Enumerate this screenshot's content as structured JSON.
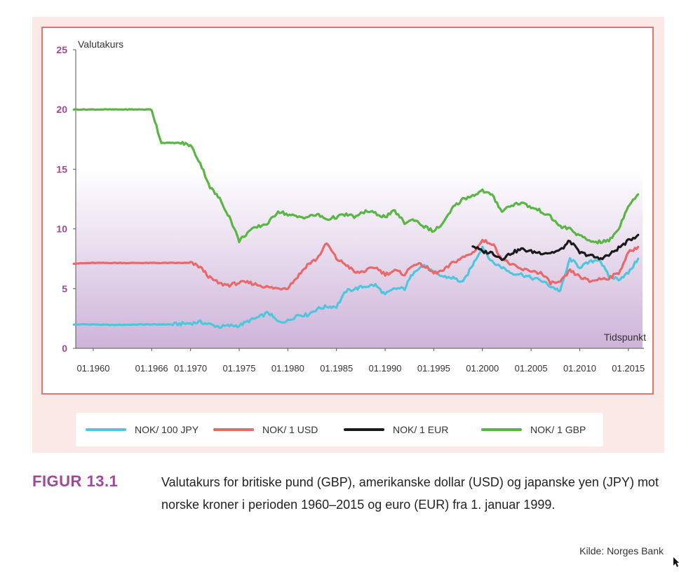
{
  "chart_data": {
    "type": "line",
    "ylabel": "Valutakurs",
    "xlabel": "Tidspunkt",
    "ylim": [
      0,
      25
    ],
    "yticks": [
      0,
      5,
      10,
      15,
      20,
      25
    ],
    "xticks": [
      "01.1960",
      "01.1966",
      "01.1970",
      "01.1975",
      "01.1980",
      "01.1985",
      "01.1990",
      "01.1995",
      "01.2000",
      "01.2005",
      "01.2010",
      "01.2015"
    ],
    "legend_position": "bottom",
    "series": [
      {
        "name": "NOK/ 100 JPY",
        "color": "#4ec6dc",
        "points": [
          [
            1958,
            2.0
          ],
          [
            1960,
            2.0
          ],
          [
            1962,
            1.95
          ],
          [
            1965,
            2.0
          ],
          [
            1968,
            2.0
          ],
          [
            1970,
            2.1
          ],
          [
            1971,
            2.2
          ],
          [
            1972,
            2.0
          ],
          [
            1973,
            1.8
          ],
          [
            1974,
            1.9
          ],
          [
            1975,
            1.9
          ],
          [
            1976,
            2.3
          ],
          [
            1977,
            2.6
          ],
          [
            1978,
            3.0
          ],
          [
            1979,
            2.2
          ],
          [
            1980,
            2.3
          ],
          [
            1981,
            2.8
          ],
          [
            1982,
            2.8
          ],
          [
            1983,
            3.3
          ],
          [
            1984,
            3.5
          ],
          [
            1985,
            3.5
          ],
          [
            1986,
            4.8
          ],
          [
            1987,
            5.0
          ],
          [
            1988,
            5.2
          ],
          [
            1989,
            5.3
          ],
          [
            1990,
            4.5
          ],
          [
            1991,
            5.0
          ],
          [
            1992,
            5.0
          ],
          [
            1993,
            6.5
          ],
          [
            1994,
            7.0
          ],
          [
            1995,
            6.3
          ],
          [
            1996,
            6.0
          ],
          [
            1997,
            5.9
          ],
          [
            1998,
            5.5
          ],
          [
            1999,
            7.0
          ],
          [
            2000,
            8.5
          ],
          [
            2001,
            7.2
          ],
          [
            2002,
            6.8
          ],
          [
            2003,
            6.3
          ],
          [
            2004,
            6.2
          ],
          [
            2005,
            5.9
          ],
          [
            2006,
            5.7
          ],
          [
            2007,
            5.2
          ],
          [
            2008,
            4.8
          ],
          [
            2009,
            7.5
          ],
          [
            2010,
            6.8
          ],
          [
            2011,
            7.2
          ],
          [
            2012,
            7.5
          ],
          [
            2013,
            6.0
          ],
          [
            2014,
            5.8
          ],
          [
            2015,
            6.3
          ],
          [
            2016,
            7.5
          ]
        ]
      },
      {
        "name": "NOK/ 1 USD",
        "color": "#e8696a",
        "points": [
          [
            1958,
            7.1
          ],
          [
            1960,
            7.15
          ],
          [
            1965,
            7.15
          ],
          [
            1968,
            7.15
          ],
          [
            1970,
            7.15
          ],
          [
            1971,
            6.8
          ],
          [
            1972,
            5.9
          ],
          [
            1973,
            5.4
          ],
          [
            1974,
            5.3
          ],
          [
            1975,
            5.5
          ],
          [
            1976,
            5.5
          ],
          [
            1977,
            5.3
          ],
          [
            1978,
            5.1
          ],
          [
            1979,
            5.0
          ],
          [
            1980,
            5.1
          ],
          [
            1981,
            6.0
          ],
          [
            1982,
            7.0
          ],
          [
            1983,
            7.5
          ],
          [
            1984,
            8.8
          ],
          [
            1985,
            7.5
          ],
          [
            1986,
            7.0
          ],
          [
            1987,
            6.3
          ],
          [
            1988,
            6.5
          ],
          [
            1989,
            6.8
          ],
          [
            1990,
            6.2
          ],
          [
            1991,
            6.5
          ],
          [
            1992,
            6.2
          ],
          [
            1993,
            7.1
          ],
          [
            1994,
            6.9
          ],
          [
            1995,
            6.3
          ],
          [
            1996,
            6.5
          ],
          [
            1997,
            7.2
          ],
          [
            1998,
            7.6
          ],
          [
            1999,
            8.0
          ],
          [
            2000,
            9.0
          ],
          [
            2001,
            8.8
          ],
          [
            2002,
            7.5
          ],
          [
            2003,
            7.0
          ],
          [
            2004,
            6.6
          ],
          [
            2005,
            6.5
          ],
          [
            2006,
            6.3
          ],
          [
            2007,
            5.5
          ],
          [
            2008,
            5.5
          ],
          [
            2009,
            6.5
          ],
          [
            2010,
            6.0
          ],
          [
            2011,
            5.6
          ],
          [
            2012,
            5.8
          ],
          [
            2013,
            5.9
          ],
          [
            2014,
            6.3
          ],
          [
            2015,
            8.0
          ],
          [
            2016,
            8.5
          ]
        ]
      },
      {
        "name": "NOK/ 1 EUR",
        "color": "#1a1a1a",
        "points": [
          [
            1999,
            8.6
          ],
          [
            2000,
            8.1
          ],
          [
            2001,
            8.0
          ],
          [
            2002,
            7.5
          ],
          [
            2003,
            8.0
          ],
          [
            2004,
            8.3
          ],
          [
            2005,
            8.1
          ],
          [
            2006,
            8.0
          ],
          [
            2007,
            8.0
          ],
          [
            2008,
            8.2
          ],
          [
            2009,
            9.0
          ],
          [
            2010,
            8.0
          ],
          [
            2011,
            7.8
          ],
          [
            2012,
            7.5
          ],
          [
            2013,
            7.8
          ],
          [
            2014,
            8.4
          ],
          [
            2015,
            9.0
          ],
          [
            2016,
            9.5
          ]
        ]
      },
      {
        "name": "NOK/ 1 GBP",
        "color": "#5ab644",
        "points": [
          [
            1958,
            20.0
          ],
          [
            1960,
            20.0
          ],
          [
            1962,
            20.0
          ],
          [
            1964,
            20.0
          ],
          [
            1966,
            20.0
          ],
          [
            1967,
            17.2
          ],
          [
            1969,
            17.2
          ],
          [
            1970,
            17.0
          ],
          [
            1971,
            15.5
          ],
          [
            1972,
            13.5
          ],
          [
            1973,
            12.5
          ],
          [
            1974,
            11.0
          ],
          [
            1975,
            9.0
          ],
          [
            1976,
            9.8
          ],
          [
            1977,
            10.2
          ],
          [
            1978,
            10.5
          ],
          [
            1979,
            11.5
          ],
          [
            1980,
            11.2
          ],
          [
            1981,
            11.0
          ],
          [
            1982,
            11.0
          ],
          [
            1983,
            11.2
          ],
          [
            1984,
            10.8
          ],
          [
            1985,
            11.0
          ],
          [
            1986,
            11.2
          ],
          [
            1987,
            11.0
          ],
          [
            1988,
            11.5
          ],
          [
            1989,
            11.3
          ],
          [
            1990,
            11.0
          ],
          [
            1991,
            11.5
          ],
          [
            1992,
            10.5
          ],
          [
            1993,
            10.8
          ],
          [
            1994,
            10.2
          ],
          [
            1995,
            9.8
          ],
          [
            1996,
            10.5
          ],
          [
            1997,
            11.8
          ],
          [
            1998,
            12.5
          ],
          [
            1999,
            12.8
          ],
          [
            2000,
            13.2
          ],
          [
            2001,
            12.8
          ],
          [
            2002,
            11.5
          ],
          [
            2003,
            12.0
          ],
          [
            2004,
            12.2
          ],
          [
            2005,
            11.8
          ],
          [
            2006,
            11.5
          ],
          [
            2007,
            11.0
          ],
          [
            2008,
            10.2
          ],
          [
            2009,
            10.0
          ],
          [
            2010,
            9.4
          ],
          [
            2011,
            9.0
          ],
          [
            2012,
            8.9
          ],
          [
            2013,
            9.0
          ],
          [
            2014,
            10.0
          ],
          [
            2015,
            12.0
          ],
          [
            2016,
            12.9
          ]
        ]
      }
    ]
  },
  "figure": {
    "label": "FIGUR 13.1",
    "caption": "Valutakurs for britiske pund (GBP), amerikanske dollar (USD) og japanske yen (JPY) mot norske kroner i perioden 1960–2015 og euro (EUR) fra 1. januar 1999.",
    "source": "Kilde: Norges Bank"
  },
  "colors": {
    "panel_bg": "#fbe9e7",
    "frame": "#e8736b",
    "tick_label": "#a2489a",
    "gradient_top": "#ffffff",
    "gradient_bottom": "#cdb3d9"
  }
}
